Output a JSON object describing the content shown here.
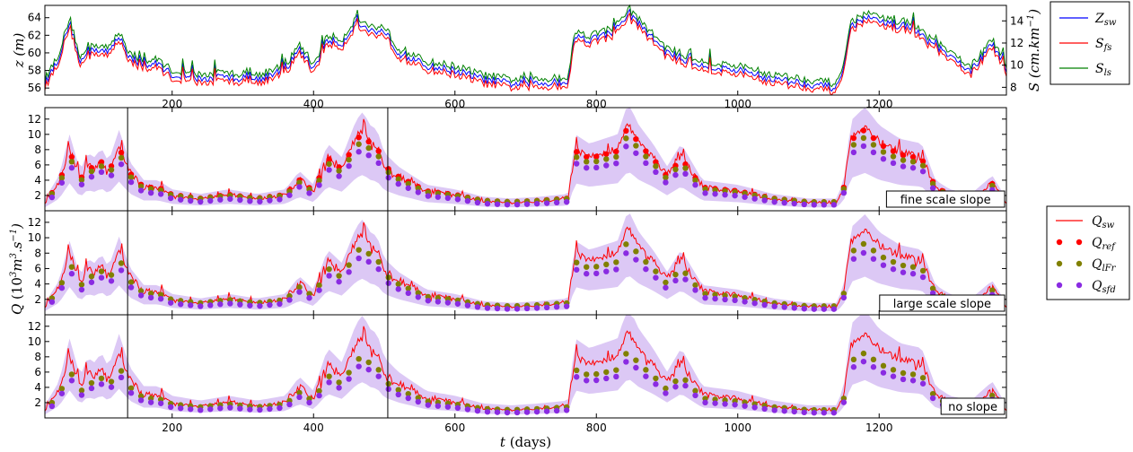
{
  "chart_data": [
    {
      "id": "top",
      "type": "line",
      "xlim": [
        20,
        1380
      ],
      "ylim": [
        55.2,
        65.4
      ],
      "ylim_right": [
        7.3,
        15.4
      ],
      "xticks": [
        200,
        400,
        600,
        800,
        1000,
        1200
      ],
      "xtick_labels": [
        "200",
        "400",
        "600",
        "800",
        "1000",
        "1200"
      ],
      "yticks": [
        56,
        58,
        60,
        62,
        64
      ],
      "ytick_labels": [
        "56",
        "58",
        "60",
        "62",
        "64"
      ],
      "yticks_right": [
        8,
        10,
        12,
        14
      ],
      "ytick_labels_right": [
        "8",
        "10",
        "12",
        "14"
      ],
      "ylabel_var": "z",
      "ylabel_unit": "(m)",
      "ylabel_right_var": "S",
      "ylabel_right_unit": "(cm.km",
      "ylabel_right_exp": "−1",
      "ylabel_right_close": ")",
      "legend": {
        "items": [
          {
            "label": "Z",
            "sub": "sw",
            "color": "#0000ff"
          },
          {
            "label": "S",
            "sub": "fs",
            "color": "#ff0000"
          },
          {
            "label": "S",
            "sub": "ls",
            "color": "#008000"
          }
        ]
      },
      "control_points": {
        "t": [
          20,
          40,
          55,
          70,
          90,
          110,
          125,
          140,
          160,
          180,
          200,
          240,
          280,
          320,
          360,
          380,
          400,
          420,
          440,
          460,
          480,
          500,
          520,
          560,
          600,
          640,
          680,
          720,
          760,
          770,
          790,
          830,
          845,
          870,
          900,
          950,
          1000,
          1050,
          1100,
          1140,
          1150,
          1160,
          1180,
          1200,
          1240,
          1260,
          1300,
          1330,
          1360,
          1380
        ],
        "z": [
          56.5,
          59.5,
          63.5,
          59.0,
          60.5,
          60.0,
          62.0,
          59.5,
          58.5,
          58.8,
          57.5,
          57.0,
          57.2,
          57.0,
          58.0,
          60.5,
          58.2,
          61.5,
          61.0,
          63.5,
          62.5,
          62.5,
          60.0,
          58.5,
          58.0,
          57.0,
          56.5,
          56.5,
          56.8,
          62.0,
          61.5,
          62.5,
          64.5,
          62.5,
          60.0,
          58.5,
          58.0,
          57.0,
          56.5,
          56.0,
          58.5,
          63.0,
          64.0,
          63.5,
          63.0,
          62.0,
          59.5,
          58.0,
          61.0,
          58.0
        ]
      },
      "series": [
        {
          "name": "Z_sw",
          "color": "#0000ff",
          "offset": 0.0
        },
        {
          "name": "S_fs",
          "color": "#ff0000",
          "offset": -0.45
        },
        {
          "name": "S_ls",
          "color": "#008000",
          "offset": 0.5
        }
      ]
    },
    {
      "id": "discharge",
      "type": "line",
      "xlim": [
        20,
        1380
      ],
      "ylim": [
        0,
        13.5
      ],
      "xticks": [
        200,
        400,
        600,
        800,
        1000,
        1200
      ],
      "xtick_labels": [
        "200",
        "400",
        "600",
        "800",
        "1000",
        "1200"
      ],
      "yticks": [
        2,
        4,
        6,
        8,
        10,
        12
      ],
      "ytick_labels": [
        "2",
        "4",
        "6",
        "8",
        "10",
        "12"
      ],
      "xlabel_var": "t",
      "xlabel_unit": "(days)",
      "ylabel_var": "Q",
      "ylabel_unit": "(10",
      "ylabel_exp": "3",
      "ylabel_unit2": "m",
      "ylabel_exp2": "3",
      "ylabel_unit3": ".s",
      "ylabel_exp3": "−1",
      "ylabel_close": ")",
      "vlines": [
        137,
        505
      ],
      "legend": {
        "items": [
          {
            "label": "Q",
            "sub": "sw",
            "marker": "line",
            "color": "#ff0000"
          },
          {
            "label": "Q",
            "sub": "ref",
            "marker": "dots",
            "color": "#ff0000"
          },
          {
            "label": "Q",
            "sub": "lFr",
            "marker": "dots",
            "color": "#808000"
          },
          {
            "label": "Q",
            "sub": "sfd",
            "marker": "dots",
            "color": "#8a2be2"
          }
        ]
      },
      "control_points": {
        "t": [
          20,
          40,
          55,
          70,
          80,
          90,
          100,
          110,
          125,
          140,
          160,
          180,
          200,
          240,
          280,
          320,
          360,
          380,
          400,
          420,
          440,
          460,
          470,
          480,
          490,
          500,
          520,
          560,
          600,
          640,
          680,
          720,
          760,
          770,
          790,
          810,
          830,
          845,
          860,
          880,
          900,
          920,
          950,
          1000,
          1050,
          1100,
          1140,
          1150,
          1160,
          1180,
          1200,
          1230,
          1260,
          1280,
          1300,
          1330,
          1360,
          1380
        ],
        "q": [
          1.0,
          3.5,
          8.0,
          4.0,
          6.0,
          5.5,
          6.5,
          5.0,
          8.5,
          5.0,
          3.0,
          3.0,
          2.0,
          1.5,
          2.0,
          1.5,
          2.0,
          4.0,
          2.5,
          7.0,
          5.5,
          9.5,
          10.5,
          9.0,
          8.5,
          6.0,
          4.5,
          2.5,
          2.0,
          1.2,
          1.0,
          1.2,
          1.5,
          8.0,
          7.0,
          7.5,
          8.0,
          11.5,
          9.0,
          7.0,
          4.5,
          7.0,
          3.0,
          2.5,
          1.5,
          1.0,
          1.0,
          3.0,
          9.5,
          11.0,
          9.0,
          7.5,
          7.0,
          3.0,
          2.0,
          1.5,
          3.5,
          1.0
        ]
      },
      "panels": [
        {
          "label": "fine scale slope",
          "has_ref": true,
          "band_scale": 1.2,
          "sfd_scale": 0.78,
          "lfr_scale": 0.85
        },
        {
          "label": "large scale slope",
          "has_ref": false,
          "band_scale": 1.15,
          "sfd_scale": 0.74,
          "lfr_scale": 0.82
        },
        {
          "label": "no slope",
          "has_ref": false,
          "band_scale": 1.25,
          "sfd_scale": 0.68,
          "lfr_scale": 0.75
        }
      ]
    }
  ]
}
